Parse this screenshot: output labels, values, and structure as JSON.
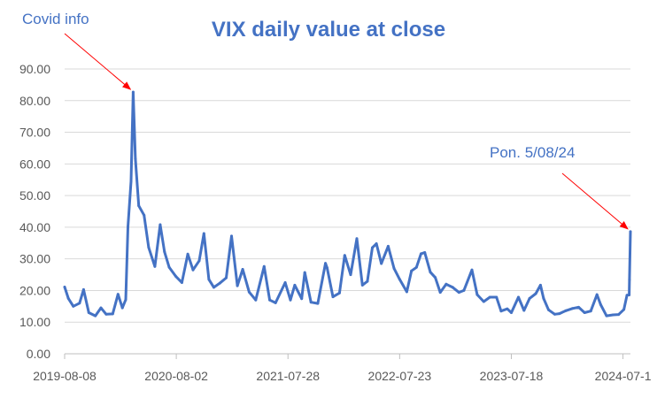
{
  "chart_data": {
    "type": "line",
    "title": "VIX daily value at close",
    "xlabel": "",
    "ylabel": "",
    "ylim": [
      0,
      90
    ],
    "y_ticks": [
      "0.00",
      "10.00",
      "20.00",
      "30.00",
      "40.00",
      "50.00",
      "60.00",
      "70.00",
      "80.00",
      "90.00"
    ],
    "x_ticks": [
      "2019-08-08",
      "2020-08-02",
      "2021-07-28",
      "2022-07-23",
      "2023-07-18",
      "2024-07-1"
    ],
    "x_range": [
      "2019-08-08",
      "2024-08-05"
    ],
    "grid": "horizontal",
    "legend": "none",
    "color": "#4472c4",
    "series": [
      {
        "x": [
          "2019-08-08",
          "2019-08-20",
          "2019-09-05",
          "2019-09-25",
          "2019-10-08",
          "2019-10-25",
          "2019-11-15",
          "2019-12-03",
          "2019-12-20",
          "2020-01-10",
          "2020-01-27",
          "2020-02-10",
          "2020-02-21",
          "2020-02-28",
          "2020-03-09",
          "2020-03-16",
          "2020-03-23",
          "2020-04-03",
          "2020-04-20",
          "2020-05-05",
          "2020-05-25",
          "2020-06-11",
          "2020-06-25",
          "2020-07-10",
          "2020-07-31",
          "2020-08-20",
          "2020-09-08",
          "2020-09-25",
          "2020-10-15",
          "2020-10-30",
          "2020-11-15",
          "2020-12-01",
          "2020-12-20",
          "2021-01-10",
          "2021-01-27",
          "2021-02-15",
          "2021-03-04",
          "2021-03-25",
          "2021-04-15",
          "2021-05-12",
          "2021-05-30",
          "2021-06-18",
          "2021-07-19",
          "2021-08-05",
          "2021-08-19",
          "2021-09-10",
          "2021-09-20",
          "2021-10-10",
          "2021-11-01",
          "2021-11-26",
          "2021-12-01",
          "2021-12-20",
          "2022-01-10",
          "2022-01-27",
          "2022-02-15",
          "2022-03-07",
          "2022-03-25",
          "2022-04-10",
          "2022-04-26",
          "2022-05-09",
          "2022-05-25",
          "2022-06-16",
          "2022-07-05",
          "2022-07-23",
          "2022-08-15",
          "2022-08-30",
          "2022-09-15",
          "2022-09-30",
          "2022-10-12",
          "2022-10-30",
          "2022-11-15",
          "2022-12-01",
          "2022-12-20",
          "2023-01-10",
          "2023-01-30",
          "2023-02-15",
          "2023-03-13",
          "2023-03-30",
          "2023-04-20",
          "2023-05-10",
          "2023-05-31",
          "2023-06-15",
          "2023-07-05",
          "2023-07-18",
          "2023-08-10",
          "2023-08-28",
          "2023-09-15",
          "2023-10-05",
          "2023-10-20",
          "2023-10-30",
          "2023-11-15",
          "2023-12-05",
          "2023-12-20",
          "2024-01-10",
          "2024-01-31",
          "2024-02-20",
          "2024-03-10",
          "2024-03-30",
          "2024-04-19",
          "2024-05-01",
          "2024-05-20",
          "2024-06-10",
          "2024-06-28",
          "2024-07-15",
          "2024-07-25",
          "2024-08-01",
          "2024-08-02",
          "2024-08-05"
        ],
        "y": [
          21.1,
          17.5,
          15.0,
          16.0,
          20.3,
          13.0,
          12.0,
          14.5,
          12.5,
          12.6,
          18.8,
          14.5,
          17.1,
          40.1,
          54.5,
          82.7,
          61.6,
          46.8,
          43.8,
          33.6,
          27.6,
          40.8,
          32.2,
          27.3,
          24.5,
          22.5,
          31.5,
          26.5,
          29.4,
          38.0,
          23.5,
          21.0,
          22.3,
          24.0,
          37.2,
          21.5,
          26.7,
          19.5,
          17.0,
          27.6,
          17.0,
          16.1,
          22.5,
          17.0,
          21.7,
          17.4,
          25.7,
          16.3,
          15.9,
          28.6,
          27.2,
          18.0,
          19.2,
          31.1,
          25.0,
          36.4,
          21.7,
          22.9,
          33.5,
          34.8,
          28.5,
          34.0,
          27.0,
          23.5,
          19.6,
          26.2,
          27.3,
          31.6,
          32.0,
          25.8,
          24.1,
          19.4,
          22.0,
          21.0,
          19.4,
          20.0,
          26.5,
          18.7,
          16.5,
          17.9,
          17.9,
          13.5,
          14.2,
          13.0,
          17.9,
          13.7,
          17.5,
          19.0,
          21.7,
          17.5,
          13.9,
          12.5,
          12.7,
          13.6,
          14.3,
          14.7,
          13.0,
          13.5,
          18.7,
          15.5,
          12.0,
          12.3,
          12.4,
          14.0,
          18.5,
          18.6,
          23.4,
          38.6
        ]
      }
    ],
    "annotations": [
      {
        "text": "Covid info",
        "target_date": "2020-03-16",
        "target_value": 82.7
      },
      {
        "text": "Pon. 5/08/24",
        "target_date": "2024-08-05",
        "target_value": 38.6
      }
    ],
    "annotation_arrow_color": "#ff0000"
  }
}
